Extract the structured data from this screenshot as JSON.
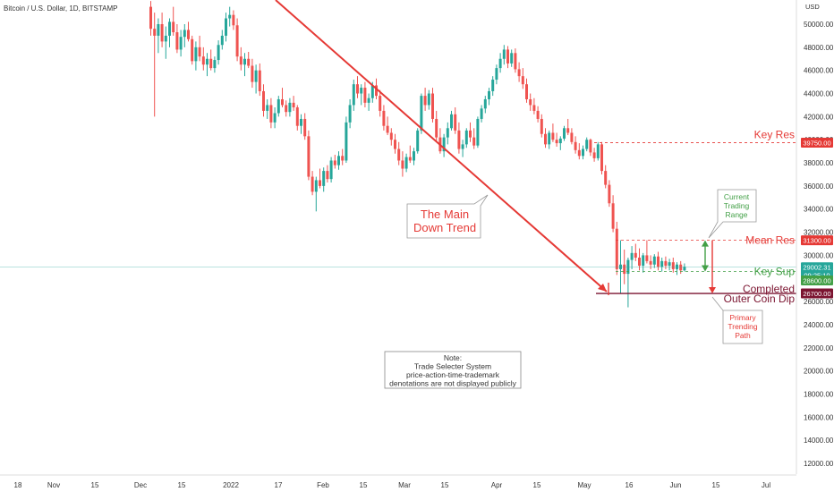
{
  "header": {
    "title": "Bitcoin / U.S. Dollar, 1D, BITSTAMP",
    "currency": "USD"
  },
  "colors": {
    "up": "#26a69a",
    "down": "#ef5350",
    "trend": "#e53935",
    "green_label": "#43a047",
    "red_label": "#e53935",
    "purple": "#7b1430",
    "current_price_line": "#26a69a"
  },
  "chart_data": {
    "type": "candlestick",
    "title": "Bitcoin / U.S. Dollar, 1D, BITSTAMP",
    "ylabel": "USD",
    "ylim": [
      11000,
      52000
    ],
    "y_ticks": [
      12000,
      14000,
      16000,
      18000,
      20000,
      22000,
      24000,
      26000,
      28000,
      30000,
      32000,
      34000,
      36000,
      38000,
      40000,
      42000,
      44000,
      46000,
      48000,
      50000
    ],
    "x_tick_labels": [
      "18",
      "Nov",
      "15",
      "Dec",
      "15",
      "2022",
      "17",
      "Feb",
      "15",
      "Mar",
      "15",
      "Apr",
      "15",
      "May",
      "16",
      "Jun",
      "15",
      "Jul"
    ],
    "grid": false,
    "price_levels": [
      {
        "label": "39750.00",
        "value": 39750
      },
      {
        "label": "31300.00",
        "value": 31300
      },
      {
        "label": "28600.00",
        "value": 28600
      },
      {
        "label": "26700.00",
        "value": 26700
      }
    ],
    "current_price": {
      "value": 29002.31,
      "label": "29002.31",
      "countdown": "09:25:10"
    },
    "series": [
      {
        "ohlc": [
          [
            51500,
            52000,
            49000,
            49600
          ],
          [
            49600,
            51000,
            42000,
            49000
          ],
          [
            49000,
            50500,
            47500,
            50000
          ],
          [
            50000,
            51000,
            48000,
            48500
          ],
          [
            48500,
            49800,
            47000,
            49000
          ],
          [
            49000,
            50500,
            48000,
            50200
          ],
          [
            50200,
            51500,
            49000,
            49300
          ],
          [
            49300,
            50000,
            47500,
            47800
          ],
          [
            47800,
            49500,
            47200,
            48900
          ],
          [
            48900,
            50000,
            48000,
            49500
          ],
          [
            49500,
            50200,
            48500,
            48700
          ],
          [
            48700,
            49000,
            46500,
            46800
          ],
          [
            46800,
            48500,
            46000,
            48000
          ],
          [
            48000,
            49000,
            46800,
            47200
          ],
          [
            47200,
            48000,
            46000,
            46500
          ],
          [
            46500,
            47500,
            45500,
            47000
          ],
          [
            47000,
            47800,
            46000,
            46200
          ],
          [
            46200,
            47200,
            45800,
            46900
          ],
          [
            46900,
            48600,
            46500,
            48200
          ],
          [
            48200,
            49500,
            47800,
            49000
          ],
          [
            49000,
            51000,
            48500,
            50500
          ],
          [
            50500,
            51500,
            49800,
            50800
          ],
          [
            50800,
            51200,
            49500,
            49900
          ],
          [
            49900,
            50500,
            46800,
            47200
          ],
          [
            47200,
            48000,
            46000,
            46500
          ],
          [
            46500,
            47500,
            45500,
            47000
          ],
          [
            47000,
            47600,
            46200,
            46400
          ],
          [
            46400,
            47000,
            44500,
            45000
          ],
          [
            45000,
            46500,
            44000,
            46000
          ],
          [
            46000,
            46600,
            43800,
            44200
          ],
          [
            44200,
            44800,
            42000,
            42500
          ],
          [
            42500,
            43500,
            41800,
            43000
          ],
          [
            43000,
            43600,
            41000,
            41500
          ],
          [
            41500,
            42800,
            41000,
            42300
          ],
          [
            42300,
            43800,
            42000,
            43500
          ],
          [
            43500,
            44500,
            42800,
            43000
          ],
          [
            43000,
            43400,
            42000,
            42400
          ],
          [
            42400,
            43600,
            42000,
            43200
          ],
          [
            43200,
            43800,
            42500,
            42800
          ],
          [
            42800,
            43000,
            40800,
            41200
          ],
          [
            41200,
            42200,
            40500,
            41800
          ],
          [
            41800,
            42300,
            40000,
            40300
          ],
          [
            40300,
            40800,
            36500,
            36800
          ],
          [
            36800,
            37300,
            35200,
            35500
          ],
          [
            35500,
            36800,
            33800,
            36500
          ],
          [
            36500,
            37500,
            35800,
            36000
          ],
          [
            36000,
            37600,
            35500,
            37300
          ],
          [
            37300,
            37800,
            36300,
            36600
          ],
          [
            36600,
            38500,
            36300,
            38200
          ],
          [
            38200,
            38700,
            37500,
            37800
          ],
          [
            37800,
            39000,
            37400,
            38600
          ],
          [
            38600,
            39200,
            37800,
            38200
          ],
          [
            38200,
            42000,
            38000,
            41500
          ],
          [
            41500,
            43500,
            41000,
            43000
          ],
          [
            43000,
            45200,
            42500,
            44800
          ],
          [
            44800,
            45500,
            43600,
            44000
          ],
          [
            44000,
            44800,
            43000,
            44500
          ],
          [
            44500,
            45000,
            42800,
            43200
          ],
          [
            43200,
            44000,
            42500,
            43600
          ],
          [
            43600,
            45000,
            43200,
            44700
          ],
          [
            44700,
            45300,
            43500,
            43800
          ],
          [
            43800,
            44300,
            42000,
            42500
          ],
          [
            42500,
            43000,
            40800,
            41200
          ],
          [
            41200,
            42000,
            40400,
            40600
          ],
          [
            40600,
            41000,
            39500,
            40000
          ],
          [
            40000,
            40500,
            38800,
            39200
          ],
          [
            39200,
            39800,
            37800,
            38200
          ],
          [
            38200,
            39000,
            36800,
            37500
          ],
          [
            37500,
            38800,
            37200,
            38500
          ],
          [
            38500,
            39500,
            38000,
            38200
          ],
          [
            38200,
            39300,
            37800,
            39000
          ],
          [
            39000,
            41000,
            38800,
            40800
          ],
          [
            40800,
            44000,
            40500,
            43800
          ],
          [
            43800,
            44500,
            42500,
            43000
          ],
          [
            43000,
            44300,
            42600,
            44000
          ],
          [
            44000,
            44500,
            41500,
            41800
          ],
          [
            41800,
            42500,
            39800,
            40200
          ],
          [
            40200,
            41000,
            38800,
            39000
          ],
          [
            39000,
            40500,
            38500,
            40200
          ],
          [
            40200,
            41500,
            39600,
            41000
          ],
          [
            41000,
            42500,
            40800,
            42200
          ],
          [
            42200,
            42800,
            40500,
            40800
          ],
          [
            40800,
            41500,
            38800,
            39200
          ],
          [
            39200,
            40000,
            38500,
            39600
          ],
          [
            39600,
            41000,
            39300,
            40800
          ],
          [
            40800,
            41500,
            39800,
            40200
          ],
          [
            40200,
            41000,
            39200,
            39500
          ],
          [
            39500,
            42000,
            39300,
            41800
          ],
          [
            41800,
            43000,
            41500,
            42700
          ],
          [
            42700,
            43800,
            42300,
            43500
          ],
          [
            43500,
            44500,
            43000,
            44200
          ],
          [
            44200,
            45500,
            43800,
            45200
          ],
          [
            45200,
            46500,
            44800,
            46200
          ],
          [
            46200,
            47500,
            45800,
            47000
          ],
          [
            47000,
            48200,
            46500,
            47800
          ],
          [
            47800,
            48100,
            46200,
            46600
          ],
          [
            46600,
            47800,
            46300,
            47500
          ],
          [
            47500,
            47900,
            45800,
            46100
          ],
          [
            46100,
            46700,
            45000,
            45500
          ],
          [
            45500,
            46200,
            44400,
            44800
          ],
          [
            44800,
            45300,
            43200,
            43500
          ],
          [
            43500,
            44000,
            42500,
            43000
          ],
          [
            43000,
            43600,
            42200,
            42500
          ],
          [
            42500,
            42900,
            41500,
            41800
          ],
          [
            41800,
            42200,
            40200,
            40500
          ],
          [
            40500,
            41000,
            39300,
            39600
          ],
          [
            39600,
            40800,
            39200,
            40600
          ],
          [
            40600,
            41400,
            39800,
            40000
          ],
          [
            40000,
            40600,
            39400,
            39700
          ],
          [
            39700,
            40300,
            39100,
            40100
          ],
          [
            40100,
            41200,
            39900,
            41000
          ],
          [
            41000,
            41800,
            40400,
            40600
          ],
          [
            40600,
            41000,
            39600,
            39800
          ],
          [
            39800,
            40300,
            38800,
            39100
          ],
          [
            39100,
            39700,
            38300,
            38600
          ],
          [
            38600,
            39500,
            38300,
            39200
          ],
          [
            39200,
            40200,
            39000,
            40000
          ],
          [
            40000,
            40100,
            38600,
            38900
          ],
          [
            38900,
            39300,
            38100,
            38400
          ],
          [
            38400,
            39800,
            38200,
            39600
          ],
          [
            39600,
            39800,
            37000,
            37300
          ],
          [
            37300,
            37800,
            35800,
            36100
          ],
          [
            36100,
            36500,
            34200,
            34500
          ],
          [
            34500,
            35200,
            32000,
            32300
          ],
          [
            32300,
            32900,
            28300,
            28800
          ],
          [
            28800,
            31300,
            26700,
            29200
          ],
          [
            29200,
            30500,
            27500,
            28400
          ],
          [
            28400,
            29800,
            25500,
            29600
          ],
          [
            29600,
            30800,
            28800,
            30200
          ],
          [
            30200,
            31000,
            29500,
            29800
          ],
          [
            29800,
            30600,
            28700,
            29100
          ],
          [
            29100,
            30200,
            28500,
            30000
          ],
          [
            30000,
            31300,
            29300,
            29500
          ],
          [
            29500,
            30000,
            28800,
            29200
          ],
          [
            29200,
            30100,
            28900,
            29900
          ],
          [
            29900,
            30300,
            28700,
            29000
          ],
          [
            29000,
            29800,
            28600,
            29500
          ],
          [
            29500,
            29900,
            28800,
            29100
          ],
          [
            29100,
            29700,
            28700,
            29400
          ],
          [
            29400,
            29800,
            28500,
            28800
          ],
          [
            28800,
            29400,
            28300,
            29200
          ],
          [
            29200,
            29500,
            28400,
            28700
          ],
          [
            28700,
            29300,
            28600,
            29002.31
          ]
        ]
      }
    ],
    "annotations": {
      "key_res": "Key Res",
      "mean_res": "Mean Res",
      "key_sup": "Key Sup",
      "completed": "Completed",
      "outer_coin_dip": "Outer Coin Dip",
      "main_trend": [
        "The Main",
        "Down Trend"
      ],
      "current_range": [
        "Current",
        "Trading",
        "Range"
      ],
      "primary_path": [
        "Primary",
        "Trending",
        "Path"
      ],
      "note": [
        "Note:",
        "Trade Selecter System",
        "price-action-time-trademark",
        "denotations are not displayed publicly"
      ]
    }
  }
}
